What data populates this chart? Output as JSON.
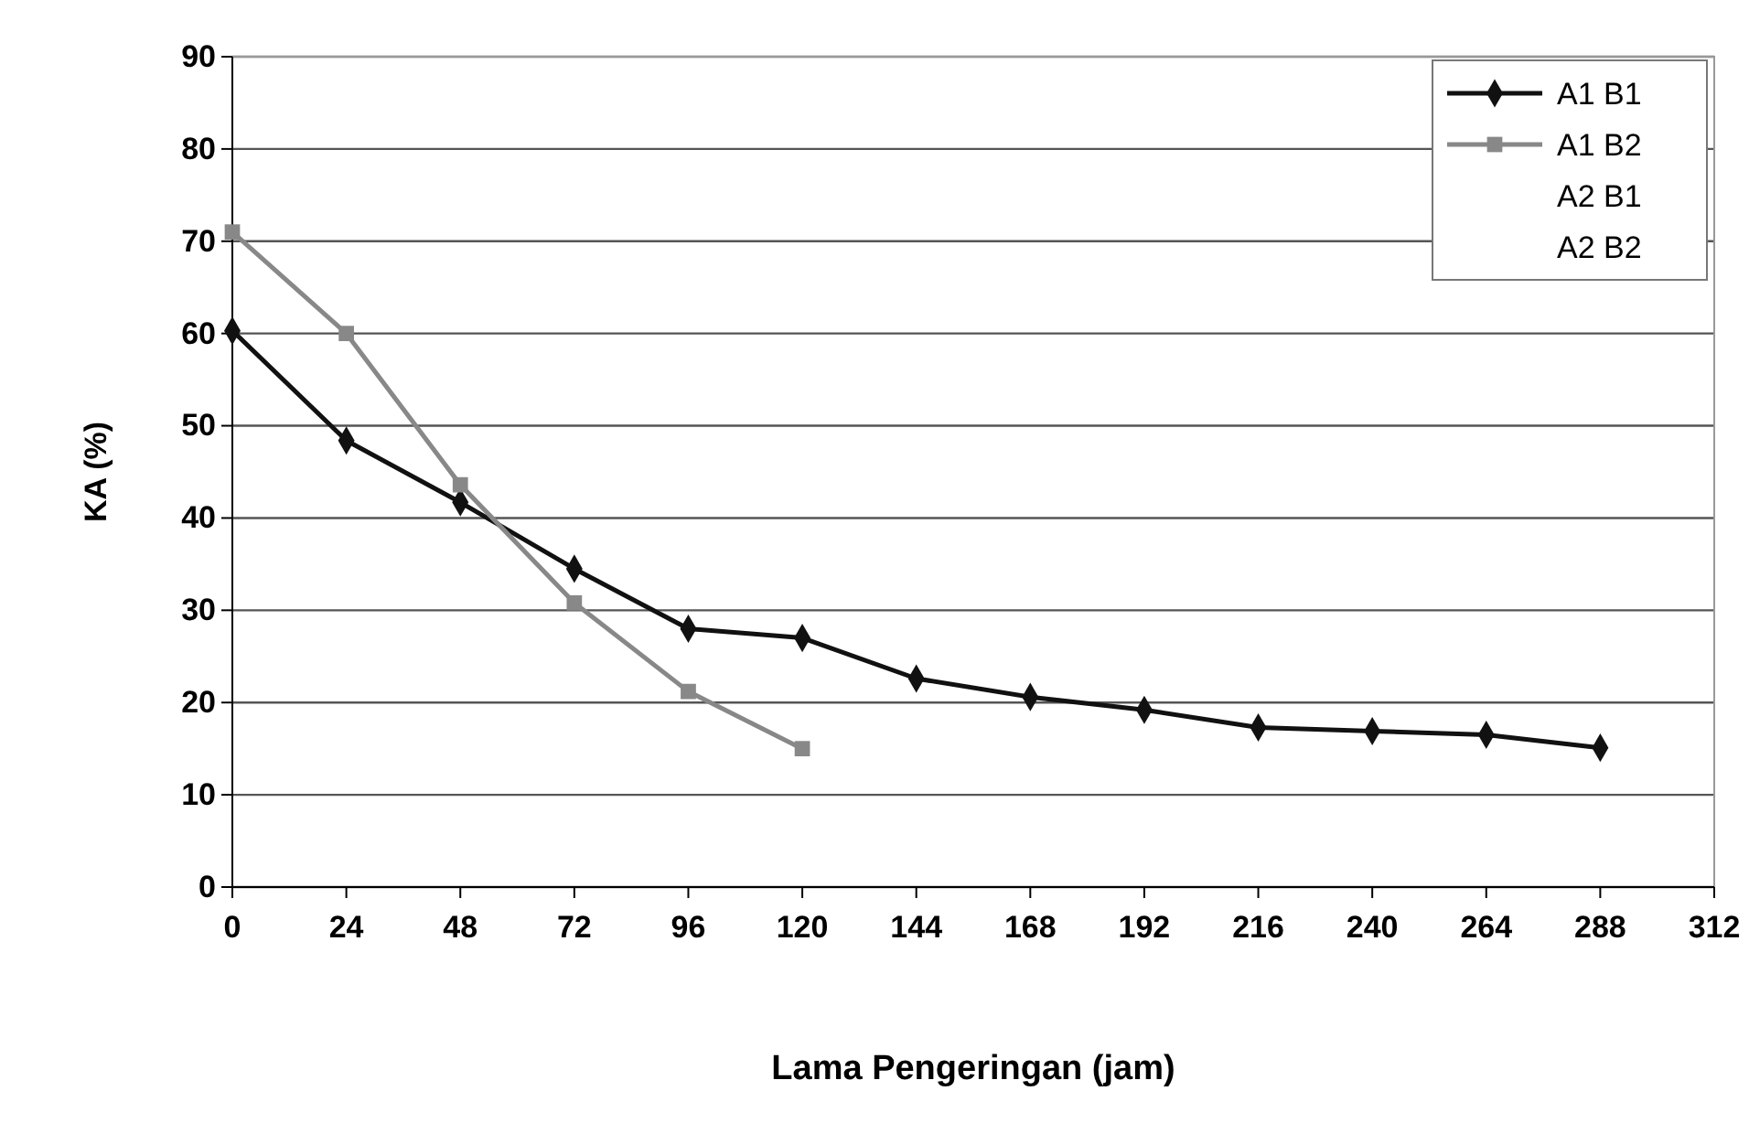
{
  "chart_data": {
    "type": "line",
    "xlabel": "Lama Pengeringan (jam)",
    "ylabel": "KA (%)",
    "x": [
      0,
      24,
      48,
      72,
      96,
      120,
      144,
      168,
      192,
      216,
      240,
      264,
      288
    ],
    "series": [
      {
        "name": "A1 B1",
        "color": "#111111",
        "marker": "diamond",
        "values": [
          60.3,
          48.4,
          41.7,
          34.5,
          28,
          27,
          22.6,
          20.6,
          19.2,
          17.3,
          16.9,
          16.5,
          15.1
        ]
      },
      {
        "name": "A1 B2",
        "color": "#888888",
        "marker": "square",
        "values": [
          71,
          60,
          43.6,
          30.8,
          21.2,
          15,
          null,
          null,
          null,
          null,
          null,
          null,
          null
        ]
      },
      {
        "name": "A2 B1",
        "marker": "none",
        "values": [
          null,
          null,
          null,
          null,
          null,
          null,
          null,
          null,
          null,
          null,
          null,
          null,
          null
        ]
      },
      {
        "name": "A2 B2",
        "marker": "none",
        "values": [
          null,
          null,
          null,
          null,
          null,
          null,
          null,
          null,
          null,
          null,
          null,
          null,
          null
        ]
      }
    ],
    "xlim": [
      0,
      312
    ],
    "xticks": [
      0,
      24,
      48,
      72,
      96,
      120,
      144,
      168,
      192,
      216,
      240,
      264,
      288,
      312
    ],
    "ylim": [
      0,
      90
    ],
    "yticks": [
      0,
      10,
      20,
      30,
      40,
      50,
      60,
      70,
      80,
      90
    ],
    "grid": "y",
    "legend": "top right"
  }
}
